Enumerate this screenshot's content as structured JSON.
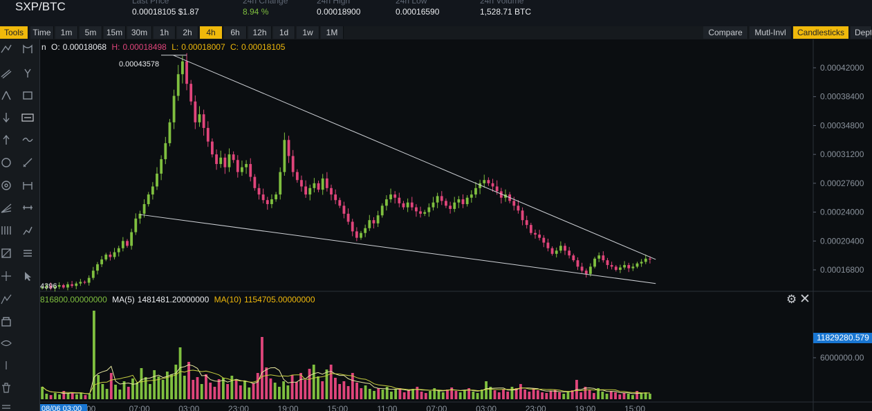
{
  "header": {
    "pair": "SXP/BTC",
    "last_price_label": "Last Price",
    "last_price_value": "0.00018105 $1.87",
    "change_label": "24h Change",
    "change_value": "8.94 %",
    "high_label": "24h High",
    "high_value": "0.00018900",
    "low_label": "24h Low",
    "low_value": "0.00016590",
    "volume_label": "24h Volume",
    "volume_value": "1,528.71 BTC"
  },
  "toolbar": {
    "tools": "Tools",
    "time": "Time",
    "intervals": [
      "1m",
      "5m",
      "15m",
      "30m",
      "1h",
      "2h",
      "4h",
      "6h",
      "12h",
      "1d",
      "1w",
      "1M"
    ],
    "active_interval": "4h",
    "compare": "Compare",
    "multi": "Mutl-Invl",
    "candlesticks": "Candlesticks",
    "depth": "Depth"
  },
  "ohlc": {
    "prefix": "n",
    "o_label": "O:",
    "o_value": "0.00018068",
    "h_label": "H:",
    "h_value": "0.00018498",
    "l_label": "L:",
    "l_value": "0.00018007",
    "c_label": "C:",
    "c_value": "0.00018105"
  },
  "volume_legend": {
    "vol_value": "816800.00000000",
    "ma5_label": "MA(5)",
    "ma5_value": "1481481.20000000",
    "ma10_label": "MA(10)",
    "ma10_value": "1154705.00000000",
    "current_volume_badge": "11829280.579"
  },
  "annotations": {
    "peak_price": "0.00043578",
    "low_price": "4396",
    "crosshair_date": "08/06 03:00"
  },
  "colors": {
    "up": "#7fbf3f",
    "down": "#e0457b",
    "accent": "#f0b90b",
    "badge": "#1976d2",
    "ma5": "#e8e8a0",
    "ma10": "#c8d040"
  },
  "chart_data": {
    "type": "candlestick",
    "price_axis_ticks": [
      "0.00042000",
      "0.00038400",
      "0.00034800",
      "0.00031200",
      "0.00027600",
      "0.00024000",
      "0.00020400",
      "0.00016800"
    ],
    "volume_axis_ticks": [
      "6000000.00"
    ],
    "time_axis_ticks": [
      ":00",
      "07:00",
      "03:00",
      "23:00",
      "19:00",
      "15:00",
      "11:00",
      "07:00",
      "03:00",
      "23:00",
      "19:00",
      "15:00"
    ],
    "price_ylim": [
      0.000143,
      0.000445
    ],
    "volume_ylim": [
      0,
      14000000
    ],
    "trendlines": [
      {
        "from": [
          0.16,
          0.0004357
        ],
        "to": [
          0.74,
          0.000181
        ]
      },
      {
        "from": [
          0.12,
          0.000237
        ],
        "to": [
          0.74,
          0.000151
        ]
      }
    ],
    "close_series": [
      0.000146,
      0.000148,
      0.000145,
      0.000147,
      0.000149,
      0.000146,
      0.00015,
      0.000148,
      0.000151,
      0.000153,
      0.000152,
      0.000158,
      0.000167,
      0.000175,
      0.000181,
      0.000187,
      0.000184,
      0.00019,
      0.000195,
      0.000204,
      0.000198,
      0.000215,
      0.000232,
      0.000238,
      0.00025,
      0.000262,
      0.000272,
      0.000288,
      0.000306,
      0.000326,
      0.000352,
      0.000385,
      0.000412,
      0.000428,
      0.0004,
      0.000378,
      0.000352,
      0.000362,
      0.000345,
      0.000328,
      0.000312,
      0.0003,
      0.000308,
      0.000296,
      0.000312,
      0.000305,
      0.00029,
      0.000296,
      0.0003,
      0.000284,
      0.00027,
      0.000262,
      0.000255,
      0.00025,
      0.000256,
      0.000262,
      0.00029,
      0.00033,
      0.00031,
      0.00029,
      0.00028,
      0.000272,
      0.000262,
      0.00027,
      0.000276,
      0.000268,
      0.000282,
      0.00027,
      0.000262,
      0.000255,
      0.000248,
      0.000238,
      0.000228,
      0.000216,
      0.000208,
      0.000214,
      0.00022,
      0.00023,
      0.000226,
      0.000236,
      0.000248,
      0.000256,
      0.000262,
      0.000258,
      0.000251,
      0.000246,
      0.000252,
      0.000246,
      0.000241,
      0.000238,
      0.00024,
      0.000246,
      0.000252,
      0.00026,
      0.000254,
      0.000248,
      0.000244,
      0.000252,
      0.000256,
      0.00025,
      0.000258,
      0.000262,
      0.00027,
      0.000276,
      0.00028,
      0.000276,
      0.000272,
      0.000266,
      0.000258,
      0.000262,
      0.000254,
      0.000248,
      0.000242,
      0.00023,
      0.000224,
      0.000214,
      0.000212,
      0.000208,
      0.000202,
      0.000195,
      0.000188,
      0.000192,
      0.000198,
      0.000192,
      0.000186,
      0.00018,
      0.000172,
      0.000167,
      0.000163,
      0.000172,
      0.000182,
      0.000186,
      0.00018,
      0.000174,
      0.000172,
      0.000168,
      0.000171,
      0.000174,
      0.00017,
      0.000172,
      0.000176,
      0.000178,
      0.000182,
      0.000181
    ],
    "volume_series": [
      1.8,
      0.8,
      0.6,
      0.9,
      0.7,
      1.2,
      0.8,
      1.0,
      0.7,
      0.9,
      0.6,
      0.8,
      12.8,
      3.5,
      2.2,
      1.5,
      3.8,
      2.1,
      1.4,
      2.6,
      1.8,
      3.0,
      2.4,
      4.5,
      3.2,
      2.2,
      4.2,
      3.3,
      2.8,
      4.0,
      3.6,
      5.0,
      7.5,
      3.4,
      5.4,
      2.8,
      3.2,
      2.2,
      3.6,
      2.4,
      1.8,
      2.9,
      3.1,
      2.2,
      3.4,
      2.8,
      2.0,
      2.6,
      1.7,
      2.3,
      3.8,
      9.0,
      4.6,
      3.0,
      2.4,
      1.8,
      2.6,
      2.0,
      3.5,
      2.5,
      3.8,
      2.8,
      4.4,
      5.0,
      3.3,
      2.6,
      4.3,
      5.0,
      3.1,
      2.2,
      2.6,
      1.9,
      3.8,
      2.4,
      1.6,
      2.0,
      1.5,
      1.2,
      1.6,
      1.4,
      1.8,
      1.1,
      1.4,
      1.6,
      1.0,
      1.3,
      1.5,
      1.8,
      1.1,
      0.9,
      1.2,
      1.6,
      1.3,
      1.0,
      1.4,
      1.7,
      1.2,
      1.0,
      1.3,
      1.6,
      1.1,
      0.9,
      1.4,
      2.6,
      1.8,
      1.3,
      1.0,
      1.4,
      1.1,
      1.8,
      1.6,
      2.2,
      1.4,
      1.1,
      1.6,
      1.3,
      1.0,
      0.9,
      1.2,
      1.4,
      1.0,
      0.8,
      1.1,
      1.3,
      2.8,
      1.0,
      1.8,
      1.3,
      0.9,
      1.6,
      1.1,
      0.8,
      1.2,
      1.0,
      0.7,
      0.9,
      0.8,
      0.6,
      1.2,
      0.9,
      1.0,
      0.8
    ]
  }
}
